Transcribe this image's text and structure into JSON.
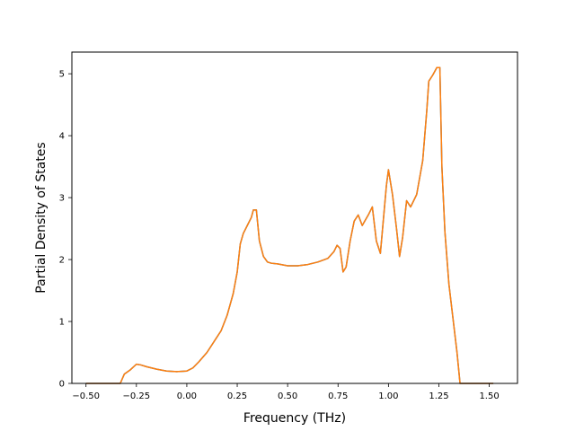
{
  "chart_data": {
    "type": "line",
    "title": "",
    "xlabel": "Frequency (THz)",
    "ylabel": "Partial Density of States",
    "xlim": [
      -0.57,
      1.64
    ],
    "ylim": [
      0,
      5.35
    ],
    "grid": false,
    "legend": "none",
    "x_ticks": [
      -0.5,
      -0.25,
      0.0,
      0.25,
      0.5,
      0.75,
      1.0,
      1.25,
      1.5
    ],
    "x_tick_labels": [
      "−0.50",
      "−0.25",
      "0.00",
      "0.25",
      "0.50",
      "0.75",
      "1.00",
      "1.25",
      "1.50"
    ],
    "y_ticks": [
      0,
      1,
      2,
      3,
      4,
      5
    ],
    "y_tick_labels": [
      "0",
      "1",
      "2",
      "3",
      "4",
      "5"
    ],
    "series": [
      {
        "color": "#1f77b4",
        "points": [
          [
            -0.5,
            0
          ],
          [
            -0.33,
            0
          ],
          [
            -0.31,
            0.15
          ],
          [
            -0.28,
            0.22
          ],
          [
            -0.25,
            0.31
          ],
          [
            -0.23,
            0.3
          ],
          [
            -0.2,
            0.27
          ],
          [
            -0.15,
            0.23
          ],
          [
            -0.1,
            0.2
          ],
          [
            -0.05,
            0.19
          ],
          [
            0,
            0.2
          ],
          [
            0.03,
            0.25
          ],
          [
            0.06,
            0.35
          ],
          [
            0.1,
            0.5
          ],
          [
            0.14,
            0.7
          ],
          [
            0.17,
            0.85
          ],
          [
            0.2,
            1.1
          ],
          [
            0.23,
            1.45
          ],
          [
            0.25,
            1.8
          ],
          [
            0.265,
            2.25
          ],
          [
            0.28,
            2.42
          ],
          [
            0.3,
            2.55
          ],
          [
            0.32,
            2.68
          ],
          [
            0.33,
            2.8
          ],
          [
            0.345,
            2.8
          ],
          [
            0.36,
            2.3
          ],
          [
            0.38,
            2.05
          ],
          [
            0.4,
            1.96
          ],
          [
            0.42,
            1.94
          ],
          [
            0.45,
            1.93
          ],
          [
            0.5,
            1.9
          ],
          [
            0.55,
            1.9
          ],
          [
            0.6,
            1.92
          ],
          [
            0.65,
            1.96
          ],
          [
            0.7,
            2.02
          ],
          [
            0.73,
            2.13
          ],
          [
            0.745,
            2.23
          ],
          [
            0.76,
            2.18
          ],
          [
            0.775,
            1.8
          ],
          [
            0.79,
            1.88
          ],
          [
            0.81,
            2.3
          ],
          [
            0.83,
            2.62
          ],
          [
            0.85,
            2.72
          ],
          [
            0.87,
            2.55
          ],
          [
            0.9,
            2.72
          ],
          [
            0.92,
            2.85
          ],
          [
            0.94,
            2.3
          ],
          [
            0.96,
            2.1
          ],
          [
            0.99,
            3.2
          ],
          [
            1.0,
            3.45
          ],
          [
            1.02,
            3.05
          ],
          [
            1.04,
            2.5
          ],
          [
            1.055,
            2.05
          ],
          [
            1.07,
            2.35
          ],
          [
            1.09,
            2.95
          ],
          [
            1.11,
            2.85
          ],
          [
            1.14,
            3.05
          ],
          [
            1.17,
            3.6
          ],
          [
            1.19,
            4.4
          ],
          [
            1.2,
            4.88
          ],
          [
            1.22,
            4.98
          ],
          [
            1.24,
            5.1
          ],
          [
            1.255,
            5.1
          ],
          [
            1.265,
            3.5
          ],
          [
            1.28,
            2.45
          ],
          [
            1.3,
            1.6
          ],
          [
            1.32,
            1.05
          ],
          [
            1.34,
            0.5
          ],
          [
            1.355,
            0
          ],
          [
            1.52,
            0
          ]
        ]
      },
      {
        "color": "#ff7f0e",
        "points": [
          [
            -0.5,
            0
          ],
          [
            -0.33,
            0
          ],
          [
            -0.31,
            0.15
          ],
          [
            -0.28,
            0.22
          ],
          [
            -0.25,
            0.31
          ],
          [
            -0.23,
            0.3
          ],
          [
            -0.2,
            0.27
          ],
          [
            -0.15,
            0.23
          ],
          [
            -0.1,
            0.2
          ],
          [
            -0.05,
            0.19
          ],
          [
            0,
            0.2
          ],
          [
            0.03,
            0.25
          ],
          [
            0.06,
            0.35
          ],
          [
            0.1,
            0.5
          ],
          [
            0.14,
            0.7
          ],
          [
            0.17,
            0.85
          ],
          [
            0.2,
            1.1
          ],
          [
            0.23,
            1.45
          ],
          [
            0.25,
            1.8
          ],
          [
            0.265,
            2.25
          ],
          [
            0.28,
            2.42
          ],
          [
            0.3,
            2.55
          ],
          [
            0.32,
            2.68
          ],
          [
            0.33,
            2.8
          ],
          [
            0.345,
            2.8
          ],
          [
            0.36,
            2.3
          ],
          [
            0.38,
            2.05
          ],
          [
            0.4,
            1.96
          ],
          [
            0.42,
            1.94
          ],
          [
            0.45,
            1.93
          ],
          [
            0.5,
            1.9
          ],
          [
            0.55,
            1.9
          ],
          [
            0.6,
            1.92
          ],
          [
            0.65,
            1.96
          ],
          [
            0.7,
            2.02
          ],
          [
            0.73,
            2.13
          ],
          [
            0.745,
            2.23
          ],
          [
            0.76,
            2.18
          ],
          [
            0.775,
            1.8
          ],
          [
            0.79,
            1.88
          ],
          [
            0.81,
            2.3
          ],
          [
            0.83,
            2.62
          ],
          [
            0.85,
            2.72
          ],
          [
            0.87,
            2.55
          ],
          [
            0.9,
            2.72
          ],
          [
            0.92,
            2.85
          ],
          [
            0.94,
            2.3
          ],
          [
            0.96,
            2.1
          ],
          [
            0.99,
            3.2
          ],
          [
            1.0,
            3.45
          ],
          [
            1.02,
            3.05
          ],
          [
            1.04,
            2.5
          ],
          [
            1.055,
            2.05
          ],
          [
            1.07,
            2.35
          ],
          [
            1.09,
            2.95
          ],
          [
            1.11,
            2.85
          ],
          [
            1.14,
            3.05
          ],
          [
            1.17,
            3.6
          ],
          [
            1.19,
            4.4
          ],
          [
            1.2,
            4.88
          ],
          [
            1.22,
            4.98
          ],
          [
            1.24,
            5.1
          ],
          [
            1.255,
            5.1
          ],
          [
            1.265,
            3.5
          ],
          [
            1.28,
            2.45
          ],
          [
            1.3,
            1.6
          ],
          [
            1.32,
            1.05
          ],
          [
            1.34,
            0.5
          ],
          [
            1.355,
            0
          ],
          [
            1.52,
            0
          ]
        ]
      }
    ]
  }
}
